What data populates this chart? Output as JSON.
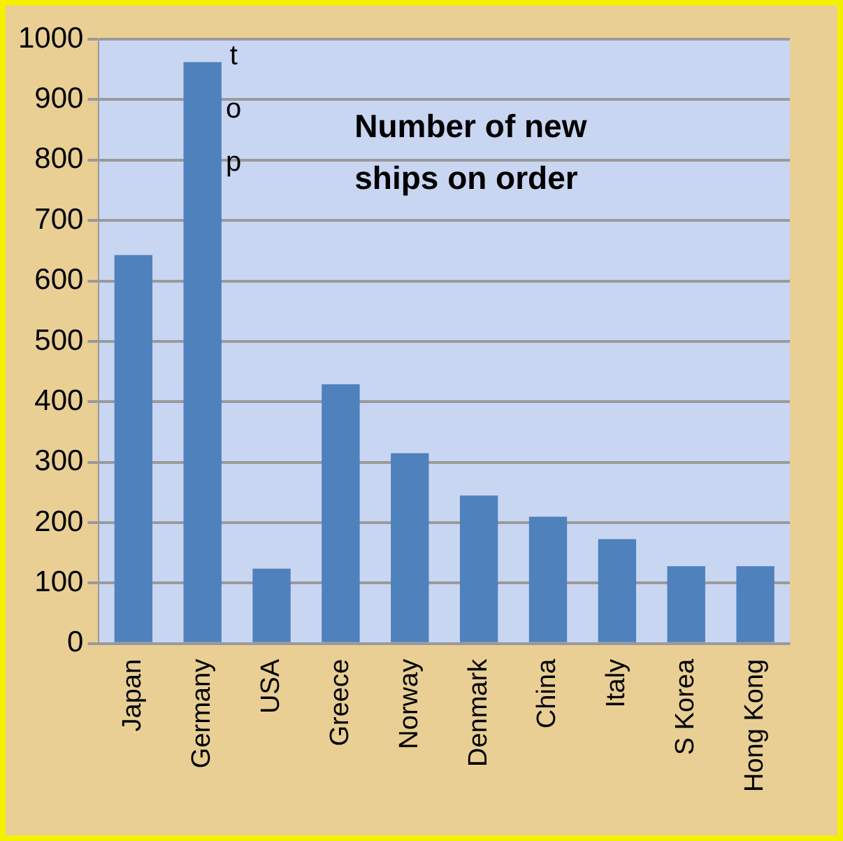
{
  "chart_data": {
    "type": "bar",
    "title": "Number of new\nships on order",
    "categories": [
      "Japan",
      "Germany",
      "USA",
      "Greece",
      "Norway",
      "Denmark",
      "China",
      "Italy",
      "S Korea",
      "Hong Kong"
    ],
    "values": [
      643,
      962,
      124,
      429,
      315,
      245,
      210,
      173,
      128,
      128
    ],
    "color": "#4f81bd",
    "ylim": [
      0,
      1000
    ],
    "yticks": [
      0,
      100,
      200,
      300,
      400,
      500,
      600,
      700,
      800,
      900,
      1000
    ],
    "grid": "y",
    "legend": false,
    "annotations": [
      {
        "text": "top",
        "x": "Germany",
        "y": 962
      }
    ]
  }
}
